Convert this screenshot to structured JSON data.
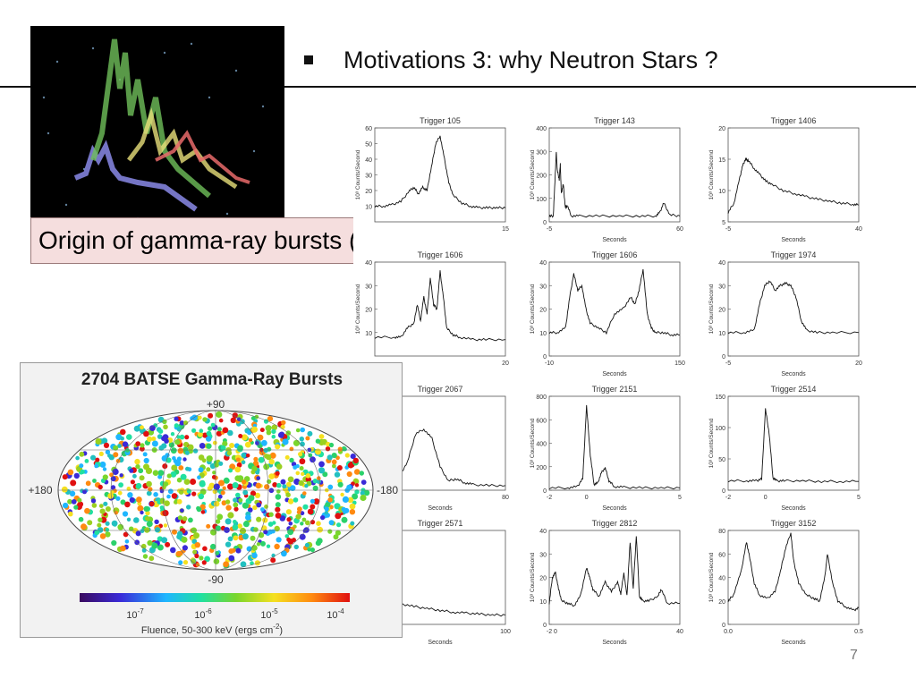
{
  "slide": {
    "title": "Motivations 3: why Neutron Stars ?",
    "caption": "Origin of gamma-ray bursts (GRBs)",
    "page_number": "7"
  },
  "batse_map": {
    "title": "2704 BATSE Gamma-Ray Bursts",
    "lat_top": "+90",
    "lat_bottom": "-90",
    "lon_left": "+180",
    "lon_right": "-180",
    "colorbar_ticks": [
      "10",
      "10",
      "10",
      "10"
    ],
    "colorbar_exponents": [
      "-7",
      "-6",
      "-5",
      "-4"
    ],
    "colorbar_label": "Fluence, 50-300 keV (ergs cm",
    "colorbar_label_exp": "-2",
    "colorbar_label_end": ")"
  },
  "chart_data": [
    {
      "type": "line",
      "title": "Trigger 105",
      "xlabel": "",
      "ylabel": "10³ Counts/Second",
      "xlim": [
        0,
        15
      ],
      "ylim": [
        0,
        60
      ],
      "yticks": [
        "60",
        "50",
        "40",
        "30",
        "20",
        "10"
      ],
      "xticks": [
        "15"
      ],
      "x": [
        0,
        1,
        2,
        3,
        4,
        4.5,
        5,
        5.5,
        6,
        6.5,
        7,
        7.5,
        8,
        8.5,
        9,
        10,
        11,
        12,
        13,
        14,
        15
      ],
      "y": [
        10,
        10,
        11,
        13,
        20,
        22,
        18,
        22,
        20,
        35,
        50,
        55,
        40,
        25,
        17,
        12,
        10,
        9,
        9,
        9,
        9
      ]
    },
    {
      "type": "line",
      "title": "Trigger 143",
      "xlabel": "Seconds",
      "ylabel": "10³ Counts/Second",
      "xlim": [
        -5,
        60
      ],
      "ylim": [
        0,
        400
      ],
      "yticks": [
        "400",
        "300",
        "200",
        "100",
        "0"
      ],
      "xticks": [
        "-5",
        "60"
      ],
      "x": [
        -5,
        -3,
        -2,
        -1.5,
        -1,
        0,
        0.5,
        1,
        2,
        3,
        4,
        6,
        10,
        20,
        30,
        40,
        48,
        50,
        52,
        55,
        60
      ],
      "y": [
        25,
        25,
        200,
        300,
        220,
        180,
        250,
        120,
        160,
        60,
        70,
        25,
        25,
        25,
        25,
        25,
        25,
        40,
        80,
        30,
        25
      ]
    },
    {
      "type": "line",
      "title": "Trigger 1406",
      "xlabel": "Seconds",
      "ylabel": "10³ Counts/Second",
      "xlim": [
        -5,
        40
      ],
      "ylim": [
        5,
        20
      ],
      "yticks": [
        "20",
        "15",
        "10",
        "5"
      ],
      "xticks": [
        "-5",
        "40"
      ],
      "x": [
        -5,
        -3,
        -1,
        0,
        1,
        2,
        4,
        6,
        8,
        10,
        14,
        18,
        22,
        26,
        30,
        34,
        38,
        40
      ],
      "y": [
        6.5,
        8,
        12,
        14,
        15,
        14.8,
        13.5,
        12.5,
        11.5,
        11,
        10,
        9.5,
        9,
        8.6,
        8.3,
        8,
        7.8,
        7.7
      ]
    },
    {
      "type": "line",
      "title": "Trigger 1606",
      "xlabel": "",
      "ylabel": "10³ Counts/Second",
      "xlim": [
        0,
        20
      ],
      "ylim": [
        0,
        40
      ],
      "yticks": [
        "40",
        "30",
        "20",
        "10"
      ],
      "xticks": [
        "20"
      ],
      "x": [
        0,
        3,
        4,
        5,
        6,
        6.5,
        7,
        7.5,
        8,
        8.5,
        9,
        9.5,
        10,
        10.5,
        11,
        12,
        13,
        15,
        17,
        20
      ],
      "y": [
        8,
        8,
        8,
        12,
        14,
        22,
        15,
        25,
        18,
        33,
        22,
        20,
        36,
        25,
        12,
        9,
        8,
        7,
        7,
        7
      ]
    },
    {
      "type": "line",
      "title": "Trigger 1606",
      "xlabel": "Seconds",
      "ylabel": "10³ Counts/Second",
      "xlim": [
        -10,
        150
      ],
      "ylim": [
        0,
        40
      ],
      "yticks": [
        "40",
        "30",
        "20",
        "10",
        "0"
      ],
      "xticks": [
        "-10",
        "150"
      ],
      "x": [
        -10,
        0,
        10,
        15,
        20,
        25,
        30,
        35,
        40,
        50,
        60,
        70,
        80,
        90,
        95,
        100,
        105,
        110,
        115,
        120,
        130,
        140,
        150
      ],
      "y": [
        10,
        10,
        12,
        25,
        35,
        28,
        30,
        20,
        14,
        12,
        10,
        18,
        20,
        25,
        22,
        28,
        37,
        18,
        12,
        10,
        10,
        9,
        9
      ]
    },
    {
      "type": "line",
      "title": "Trigger 1974",
      "xlabel": "Seconds",
      "ylabel": "10³ Counts/Second",
      "xlim": [
        -5,
        20
      ],
      "ylim": [
        0,
        40
      ],
      "yticks": [
        "40",
        "30",
        "20",
        "10",
        "0"
      ],
      "xticks": [
        "-5",
        "20"
      ],
      "x": [
        -5,
        -2,
        0,
        1,
        2,
        3,
        4,
        5,
        6,
        7,
        8,
        9,
        10,
        12,
        15,
        20
      ],
      "y": [
        10,
        10,
        11,
        22,
        30,
        32,
        28,
        30,
        31,
        30,
        25,
        15,
        11,
        10,
        10,
        10
      ]
    },
    {
      "type": "line",
      "title": "Trigger 2067",
      "xlabel": "Seconds",
      "ylabel": "",
      "xlim": [
        0,
        80
      ],
      "ylim": [
        0,
        100
      ],
      "yticks": [],
      "xticks": [
        "80"
      ],
      "x": [
        0,
        5,
        10,
        15,
        20,
        25,
        30,
        35,
        40,
        45,
        50,
        55,
        60,
        70,
        80
      ],
      "y": [
        5,
        5,
        6,
        15,
        30,
        60,
        65,
        55,
        25,
        10,
        12,
        8,
        6,
        5,
        5
      ]
    },
    {
      "type": "line",
      "title": "Trigger 2151",
      "xlabel": "Seconds",
      "ylabel": "10³ Counts/Second",
      "xlim": [
        -2,
        5
      ],
      "ylim": [
        0,
        800
      ],
      "yticks": [
        "800",
        "600",
        "400",
        "200",
        "0"
      ],
      "xticks": [
        "-2",
        "0",
        "5"
      ],
      "x": [
        -2,
        -1,
        -0.5,
        -0.2,
        0,
        0.2,
        0.4,
        0.6,
        0.8,
        1,
        1.2,
        1.5,
        2,
        3,
        4,
        5
      ],
      "y": [
        20,
        20,
        30,
        100,
        720,
        300,
        50,
        60,
        150,
        190,
        80,
        30,
        25,
        20,
        20,
        20
      ]
    },
    {
      "type": "line",
      "title": "Trigger 2514",
      "xlabel": "Seconds",
      "ylabel": "10³ Counts/Second",
      "xlim": [
        -2,
        5
      ],
      "ylim": [
        0,
        150
      ],
      "yticks": [
        "150",
        "100",
        "50",
        "0"
      ],
      "xticks": [
        "-2",
        "0",
        "5"
      ],
      "x": [
        -2,
        -1,
        -0.5,
        -0.2,
        0,
        0.2,
        0.4,
        0.6,
        1,
        2,
        3,
        4,
        5
      ],
      "y": [
        15,
        15,
        15,
        18,
        130,
        90,
        20,
        15,
        15,
        15,
        14,
        14,
        14
      ]
    },
    {
      "type": "line",
      "title": "Trigger 2571",
      "xlabel": "Seconds",
      "ylabel": "",
      "xlim": [
        0,
        100
      ],
      "ylim": [
        0,
        100
      ],
      "yticks": [],
      "xticks": [
        "100"
      ],
      "x": [
        0,
        10,
        20,
        30,
        40,
        50,
        60,
        70,
        80,
        90,
        100
      ],
      "y": [
        30,
        26,
        22,
        19,
        17,
        15,
        13,
        12,
        11,
        10,
        10
      ]
    },
    {
      "type": "line",
      "title": "Trigger 2812",
      "xlabel": "Seconds",
      "ylabel": "10³ Counts/Second",
      "xlim": [
        -2,
        40
      ],
      "ylim": [
        0,
        40
      ],
      "yticks": [
        "40",
        "30",
        "20",
        "10",
        "0"
      ],
      "xticks": [
        "-2",
        "0",
        "40"
      ],
      "x": [
        -2,
        -1,
        0,
        1,
        2,
        4,
        6,
        8,
        10,
        11,
        12,
        14,
        16,
        18,
        20,
        21,
        22,
        23,
        24,
        25,
        26,
        27,
        28,
        30,
        33,
        34,
        36,
        40
      ],
      "y": [
        9,
        20,
        22,
        15,
        10,
        9,
        8,
        12,
        24,
        20,
        15,
        12,
        18,
        14,
        18,
        13,
        22,
        12,
        35,
        15,
        38,
        12,
        10,
        10,
        12,
        15,
        9,
        9
      ]
    },
    {
      "type": "line",
      "title": "Trigger 3152",
      "xlabel": "Seconds",
      "ylabel": "10³ Counts/Second",
      "xlim": [
        0,
        0.5
      ],
      "ylim": [
        0,
        80
      ],
      "yticks": [
        "80",
        "60",
        "40",
        "20",
        "0"
      ],
      "xticks": [
        "0.0",
        "0.5"
      ],
      "x": [
        0,
        0.02,
        0.05,
        0.07,
        0.08,
        0.1,
        0.12,
        0.15,
        0.18,
        0.2,
        0.22,
        0.24,
        0.25,
        0.27,
        0.3,
        0.33,
        0.35,
        0.37,
        0.38,
        0.4,
        0.42,
        0.45,
        0.48,
        0.5
      ],
      "y": [
        20,
        25,
        45,
        70,
        60,
        35,
        25,
        22,
        28,
        45,
        65,
        78,
        55,
        35,
        25,
        22,
        20,
        40,
        60,
        35,
        20,
        15,
        12,
        14
      ]
    }
  ]
}
